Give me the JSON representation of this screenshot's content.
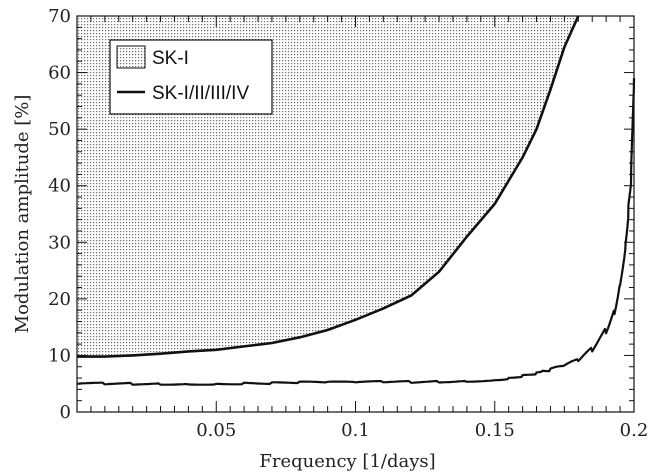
{
  "chart_data": {
    "type": "area",
    "title": "",
    "xlabel": "Frequency [1/days]",
    "ylabel": "Modulation amplitude [%]",
    "xlim": [
      0.0,
      0.2
    ],
    "ylim": [
      0,
      70
    ],
    "x_ticks": [
      {
        "value": 0.05,
        "label": "0.05"
      },
      {
        "value": 0.1,
        "label": "0.1"
      },
      {
        "value": 0.15,
        "label": "0.15"
      },
      {
        "value": 0.2,
        "label": "0.2"
      }
    ],
    "y_ticks": [
      {
        "value": 0,
        "label": "0"
      },
      {
        "value": 10,
        "label": "10"
      },
      {
        "value": 20,
        "label": "20"
      },
      {
        "value": 30,
        "label": "30"
      },
      {
        "value": 40,
        "label": "40"
      },
      {
        "value": 50,
        "label": "50"
      },
      {
        "value": 60,
        "label": "60"
      },
      {
        "value": 70,
        "label": "70"
      }
    ],
    "grid": false,
    "legend_placement": "top-left",
    "series": [
      {
        "name": "SK-I",
        "style": "shaded-area",
        "color": "#555555",
        "x": [
          0.0,
          0.01,
          0.02,
          0.03,
          0.04,
          0.05,
          0.06,
          0.07,
          0.08,
          0.09,
          0.1,
          0.11,
          0.12,
          0.13,
          0.14,
          0.15,
          0.16,
          0.165,
          0.17,
          0.175,
          0.18
        ],
        "y": [
          9.8,
          9.8,
          10.0,
          10.3,
          10.7,
          11.0,
          11.6,
          12.2,
          13.2,
          14.5,
          16.3,
          18.3,
          20.6,
          24.8,
          31.0,
          36.8,
          45.0,
          50.0,
          57.0,
          64.5,
          70.0
        ]
      },
      {
        "name": "SK-I/II/III/IV",
        "style": "line",
        "color": "#111111",
        "x": [
          0.0,
          0.01,
          0.02,
          0.03,
          0.04,
          0.05,
          0.06,
          0.07,
          0.08,
          0.09,
          0.1,
          0.11,
          0.12,
          0.13,
          0.14,
          0.15,
          0.155,
          0.16,
          0.165,
          0.17,
          0.175,
          0.18,
          0.185,
          0.19,
          0.193,
          0.195,
          0.197,
          0.198,
          0.199,
          0.2
        ],
        "y": [
          5.0,
          5.0,
          5.0,
          5.0,
          5.0,
          5.0,
          5.1,
          5.1,
          5.2,
          5.2,
          5.2,
          5.3,
          5.3,
          5.4,
          5.5,
          5.7,
          6.0,
          6.4,
          6.8,
          7.3,
          8.0,
          9.0,
          11.0,
          14.5,
          18.0,
          23.0,
          30.0,
          36.0,
          42.0,
          59.0
        ]
      }
    ]
  }
}
